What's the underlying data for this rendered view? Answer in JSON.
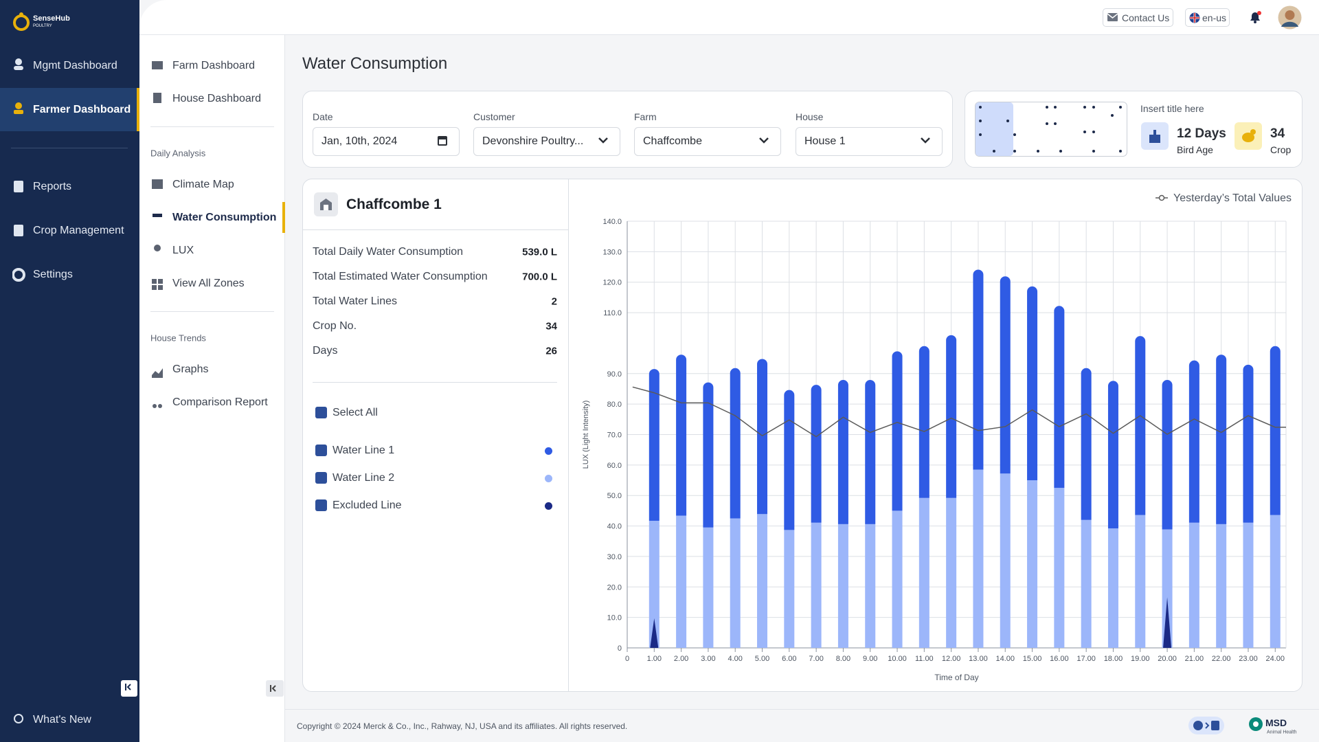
{
  "sidebar": {
    "logo": "SenseHub",
    "logo_sub": "POULTRY",
    "nav": [
      "Mgmt Dashboard",
      "Farmer Dashboard",
      "Reports",
      "Crop Management",
      "Settings"
    ],
    "whats_new": "What's New"
  },
  "subnav": {
    "top": [
      "Farm Dashboard",
      "House Dashboard"
    ],
    "daily": {
      "title": "Daily Analysis",
      "items": [
        "Climate Map",
        "Water Consumption",
        "LUX",
        "View All Zones"
      ]
    },
    "trends": {
      "title": "House Trends",
      "items": [
        "Graphs",
        "Comparison Report"
      ]
    }
  },
  "header": {
    "contact": "Contact Us",
    "language": "en-us"
  },
  "page_title": "Water Consumption",
  "filters": [
    {
      "label": "Date",
      "value": "Jan, 10th, 2024"
    },
    {
      "label": "Customer",
      "value": "Devonshire Poultry..."
    },
    {
      "label": "Farm",
      "value": "Chaffcombe"
    },
    {
      "label": "House",
      "value": "House 1"
    }
  ],
  "info": {
    "title": "Insert title here",
    "bird_age": {
      "value": "12 Days",
      "label": "Bird Age"
    },
    "crop": {
      "value": "34",
      "label": "Crop"
    }
  },
  "summary": {
    "title": "Chaffcombe 1",
    "rows": [
      {
        "label": "Total Daily Water Consumption",
        "value": "539.0 L"
      },
      {
        "label": "Total Estimated Water Consumption",
        "value": "700.0 L"
      },
      {
        "label": "Total Water Lines",
        "value": "2"
      },
      {
        "label": "Crop No.",
        "value": "34"
      },
      {
        "label": "Days",
        "value": "26"
      }
    ]
  },
  "lines": {
    "select_all": "Select All"
  },
  "chart_data": {
    "type": "bar",
    "xlabel": "Time of Day",
    "ylabel": "LUX (Light Intensity)",
    "x": [
      1,
      2,
      3,
      4,
      5,
      6,
      7,
      8,
      9,
      10,
      11,
      12,
      13,
      14,
      15,
      16,
      17,
      18,
      19,
      20,
      21,
      22,
      23,
      24
    ],
    "xlim": [
      0,
      24.4
    ],
    "xticks": [
      0,
      {
        "value": 1,
        "label": "1.00"
      },
      {
        "value": 2,
        "label": "2.00"
      },
      {
        "value": 3,
        "label": "3.00"
      },
      {
        "value": 4,
        "label": "4.00"
      },
      {
        "value": 5,
        "label": "5.00"
      },
      {
        "value": 6,
        "label": "6.00"
      },
      {
        "value": 7,
        "label": "7.00"
      },
      {
        "value": 8,
        "label": "8.00"
      },
      {
        "value": 9,
        "label": "9.00"
      },
      {
        "value": 10,
        "label": "10.00"
      },
      {
        "value": 11,
        "label": "11.00"
      },
      {
        "value": 12,
        "label": "12.00"
      },
      {
        "value": 13,
        "label": "13.00"
      },
      {
        "value": 14,
        "label": "14.00"
      },
      {
        "value": 15,
        "label": "15.00"
      },
      {
        "value": 16,
        "label": "16.00"
      },
      {
        "value": 17,
        "label": "17.00"
      },
      {
        "value": 18,
        "label": "18.00"
      },
      {
        "value": 19,
        "label": "19.00"
      },
      {
        "value": 20,
        "label": "20.00"
      },
      {
        "value": 21,
        "label": "21.00"
      },
      {
        "value": 22,
        "label": "22.00"
      },
      {
        "value": 23,
        "label": "23.00"
      },
      {
        "value": 24,
        "label": "24.00"
      }
    ],
    "ylim": [
      0,
      140
    ],
    "yticks": [
      0,
      {
        "value": 10,
        "label": "10.0"
      },
      {
        "value": 20,
        "label": "20.0"
      },
      {
        "value": 30,
        "label": "30.0"
      },
      {
        "value": 40,
        "label": "40.0"
      },
      {
        "value": 50,
        "label": "50.0"
      },
      {
        "value": 60,
        "label": "60.0"
      },
      {
        "value": 70,
        "label": "70.0"
      },
      {
        "value": 80,
        "label": "80.0"
      },
      {
        "value": 90,
        "label": "90.0"
      },
      {
        "value": 110,
        "label": "110.0"
      },
      {
        "value": 120,
        "label": "120.0"
      },
      {
        "value": 130,
        "label": "130.0"
      },
      {
        "value": 140,
        "label": "140.0"
      }
    ],
    "grid": true,
    "legend": "top-right",
    "series": [
      {
        "name": "Water Line 1",
        "type": "bar",
        "color": "#2f5be4",
        "values": [
          49.7,
          52.7,
          47.5,
          49.2,
          50.8,
          45.8,
          45.1,
          47.2,
          47.2,
          52.2,
          49.7,
          53.3,
          65.5,
          64.6,
          63.5,
          59.6,
          49.7,
          48.3,
          58.6,
          48.9,
          53.1,
          55.5,
          51.7,
          55.3
        ]
      },
      {
        "name": "Water Line 2",
        "type": "bar",
        "color": "#9cb6fa",
        "values": [
          41.7,
          43.4,
          39.5,
          42.5,
          43.9,
          38.7,
          41.1,
          40.6,
          40.6,
          45.0,
          49.2,
          49.2,
          58.5,
          57.2,
          55.0,
          52.5,
          42.0,
          39.2,
          43.6,
          38.9,
          41.1,
          40.6,
          41.1,
          43.6
        ]
      },
      {
        "name": "Excluded Line",
        "type": "spike",
        "color": "#1b2a86",
        "values": [
          9.7,
          null,
          null,
          null,
          null,
          null,
          null,
          null,
          null,
          null,
          null,
          null,
          null,
          null,
          null,
          null,
          null,
          null,
          null,
          16.6,
          null,
          null,
          null,
          null
        ]
      },
      {
        "name": "Yesterday’s Total Values",
        "type": "line",
        "color": "#5a5a5a",
        "x": [
          0.2,
          1,
          2,
          3,
          4,
          5,
          6,
          7,
          8,
          9,
          10,
          11,
          12,
          13,
          14,
          15,
          16,
          17,
          18,
          19,
          20,
          21,
          22,
          23,
          24,
          24.4
        ],
        "values": [
          85.6,
          83.7,
          80.4,
          80.4,
          76.2,
          69.6,
          74.8,
          69.3,
          75.7,
          70.7,
          74.0,
          71.0,
          75.4,
          71.3,
          72.6,
          78.1,
          72.6,
          76.8,
          70.4,
          76.2,
          70.1,
          75.1,
          70.7,
          76.2,
          72.4,
          72.4
        ]
      }
    ]
  },
  "footer": {
    "copyright": "Copyright © 2024 Merck & Co., Inc., Rahway, NJ, USA and its affiliates. All rights reserved.",
    "brand": "MSD",
    "brand_sub": "Animal Health"
  }
}
